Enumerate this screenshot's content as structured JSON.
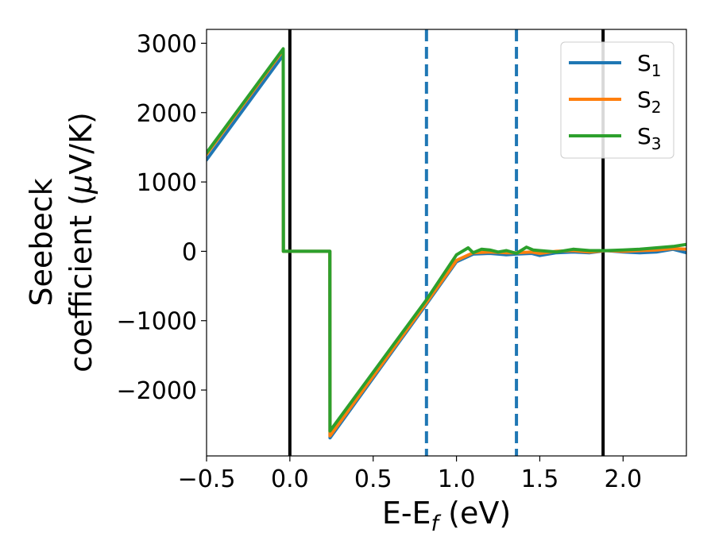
{
  "chart_data": {
    "type": "line",
    "xlabel": "E-E",
    "xlabel_sub": "f",
    "xlabel_unit": " (eV)",
    "ylabel_line1": "Seebeck",
    "ylabel_line2": "coefficient  (",
    "ylabel_mu": "μ",
    "ylabel_unit": "V/K)",
    "xlim": [
      -0.5,
      2.38
    ],
    "ylim": [
      -2950,
      3200
    ],
    "xticks": [
      -0.5,
      0.0,
      0.5,
      1.0,
      1.5,
      2.0
    ],
    "xtick_labels": [
      "−0.5",
      "0.0",
      "0.5",
      "1.0",
      "1.5",
      "2.0"
    ],
    "yticks": [
      -2000,
      -1000,
      0,
      1000,
      2000,
      3000
    ],
    "ytick_labels": [
      "−2000",
      "−1000",
      "0",
      "1000",
      "2000",
      "3000"
    ],
    "grid": false,
    "legend_position": "top-right",
    "vlines": [
      {
        "x": 0.0,
        "style": "solid",
        "color": "#000000"
      },
      {
        "x": 1.88,
        "style": "solid",
        "color": "#000000"
      },
      {
        "x": 0.82,
        "style": "dashed",
        "color": "#1f77b4"
      },
      {
        "x": 1.36,
        "style": "dashed",
        "color": "#1f77b4"
      }
    ],
    "series": [
      {
        "name": "S",
        "sub": "1",
        "color": "#1f77b4",
        "x": [
          -0.5,
          -0.04,
          -0.039,
          0.24,
          0.241,
          0.82,
          1.0,
          1.1,
          1.2,
          1.3,
          1.36,
          1.45,
          1.5,
          1.6,
          1.7,
          1.8,
          1.9,
          2.0,
          2.1,
          2.2,
          2.3,
          2.38
        ],
        "y": [
          1320,
          2830,
          0,
          0,
          -2690,
          -760,
          -150,
          -40,
          -30,
          -50,
          -40,
          -30,
          -60,
          -20,
          -10,
          -20,
          10,
          -10,
          -20,
          -10,
          30,
          -20
        ]
      },
      {
        "name": "S",
        "sub": "2",
        "color": "#ff7f0e",
        "x": [
          -0.5,
          -0.04,
          -0.039,
          0.24,
          0.241,
          0.82,
          1.0,
          1.1,
          1.2,
          1.3,
          1.36,
          1.45,
          1.5,
          1.6,
          1.7,
          1.8,
          1.9,
          2.0,
          2.1,
          2.2,
          2.3,
          2.38
        ],
        "y": [
          1400,
          2900,
          0,
          0,
          -2660,
          -740,
          -130,
          -20,
          -10,
          -20,
          -20,
          -10,
          -30,
          0,
          10,
          -10,
          10,
          0,
          10,
          20,
          40,
          30
        ]
      },
      {
        "name": "S",
        "sub": "3",
        "color": "#2ca02c",
        "x": [
          -0.5,
          -0.04,
          -0.039,
          0.24,
          0.241,
          0.82,
          1.0,
          1.07,
          1.1,
          1.15,
          1.2,
          1.25,
          1.3,
          1.36,
          1.42,
          1.46,
          1.5,
          1.6,
          1.7,
          1.8,
          1.9,
          2.0,
          2.1,
          2.2,
          2.3,
          2.38
        ],
        "y": [
          1420,
          2920,
          0,
          0,
          -2590,
          -700,
          -50,
          50,
          -20,
          30,
          20,
          -10,
          10,
          -30,
          60,
          20,
          10,
          -10,
          30,
          10,
          10,
          20,
          30,
          50,
          70,
          100
        ]
      }
    ]
  }
}
